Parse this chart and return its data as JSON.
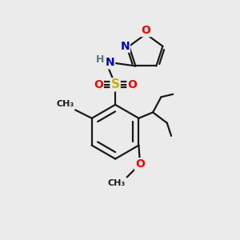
{
  "bg_color": "#ebebeb",
  "bond_color": "#1a1a1a",
  "atom_colors": {
    "S": "#c8b400",
    "O": "#ff0000",
    "N": "#0000cc",
    "H": "#5a7a7a",
    "C": "#1a1a1a"
  },
  "lw": 1.6
}
